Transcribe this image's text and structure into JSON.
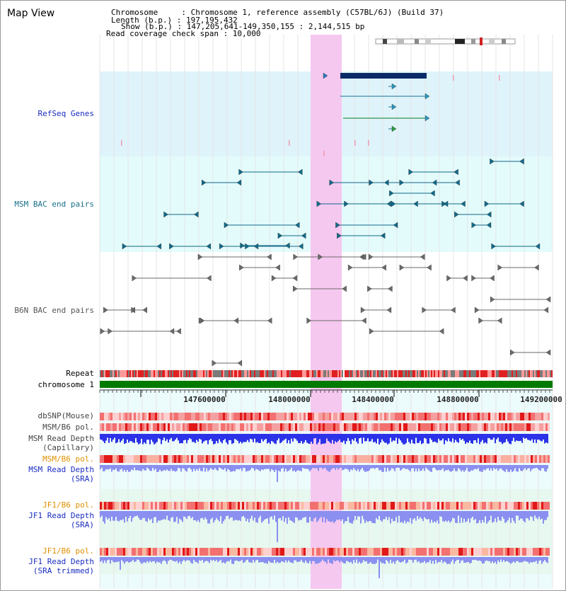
{
  "title": "Map View",
  "info": {
    "chromosome": "Chromosome     : Chromosome 1, reference assembly (C57BL/6J) (Build 37)",
    "length": "Length (b.p.) : 197,195,432",
    "show": "Show (b.p.) : 147,205,641-149,350,155 : 2,144,515 bp",
    "span": "Read coverage check span : 10,000"
  },
  "tracks": {
    "refseq": "RefSeq Genes",
    "msm_bac": "MSM BAC end pairs",
    "b6n_bac": "B6N BAC end pairs",
    "repeat": "Repeat",
    "chromosome": "chromosome 1",
    "dbsnp": "dbSNP(Mouse)",
    "msm_b6_pol_1": "MSM/B6 pol.",
    "msm_rd_cap_1": "MSM Read Depth",
    "msm_rd_cap_2": "(Capillary)",
    "msm_b6_pol_2": "MSM/B6 pol.",
    "msm_rd_sra_1": "MSM Read Depth",
    "msm_rd_sra_2": "(SRA)",
    "jf1_b6_pol_1": "JF1/B6 pol.",
    "jf1_rd_sra_1": "JF1 Read Depth",
    "jf1_rd_sra_2": "(SRA)",
    "jf1_b6_pol_2": "JF1/B6 pol.",
    "jf1_rd_trim_1": "JF1 Read Depth",
    "jf1_rd_trim_2": "(SRA trimmed)"
  },
  "ruler": {
    "labels": [
      "147600000",
      "148000000",
      "148400000",
      "148800000",
      "149200000"
    ]
  },
  "colors": {
    "refseq_bg": "#dff3fb",
    "msm_bac_bg": "#e3fbfb",
    "highlight": "#f5c8f0",
    "chromosome_bar": "#007a00",
    "depth_dark": "#2b32e8",
    "depth_light": "#8a8ff0",
    "label_blue": "#1a2cc0",
    "label_teal": "#177088",
    "label_orange": "#e09000"
  }
}
